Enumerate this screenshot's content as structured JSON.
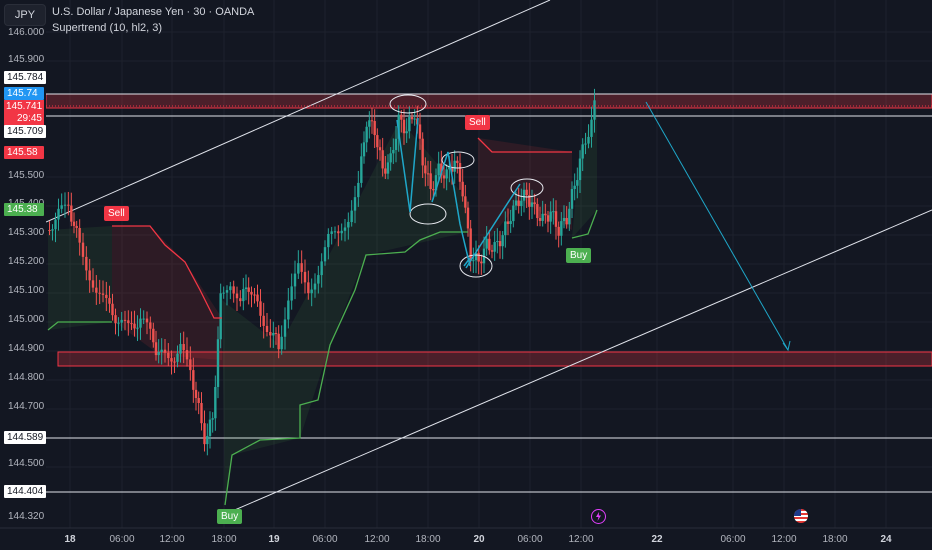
{
  "header": {
    "symbol": "JPY",
    "title": "U.S. Dollar / Japanese Yen · 30 · OANDA",
    "indicator": "Supertrend (10, hl2, 3)"
  },
  "price_axis": {
    "labels": [
      "146.000",
      "145.900",
      "145.500",
      "145.400",
      "145.300",
      "145.200",
      "145.100",
      "145.000",
      "144.900",
      "144.800",
      "144.700",
      "144.500",
      "144.320"
    ]
  },
  "price_tags": {
    "upper_line": "145.784",
    "bid": "145.74",
    "last": "145.741",
    "countdown": "29:45",
    "mid_line": "145.709",
    "st_upper": "145.58",
    "st_lower": "145.38",
    "level_1": "144.589",
    "level_2": "144.404"
  },
  "time_axis": {
    "labels": [
      "18",
      "06:00",
      "12:00",
      "18:00",
      "19",
      "06:00",
      "12:00",
      "18:00",
      "20",
      "06:00",
      "12:00",
      "22",
      "06:00",
      "12:00",
      "18:00",
      "24"
    ]
  },
  "signals": {
    "sell_1": "Sell",
    "sell_2": "Sell",
    "buy_1": "Buy",
    "buy_2": "Buy"
  },
  "colors": {
    "background": "#131722",
    "up": "#26a69a",
    "down": "#ef5350",
    "supertrend_up": "#4caf50",
    "supertrend_down": "#f23645",
    "zone": "#f23645",
    "annotation": "#1fa7c9"
  }
}
